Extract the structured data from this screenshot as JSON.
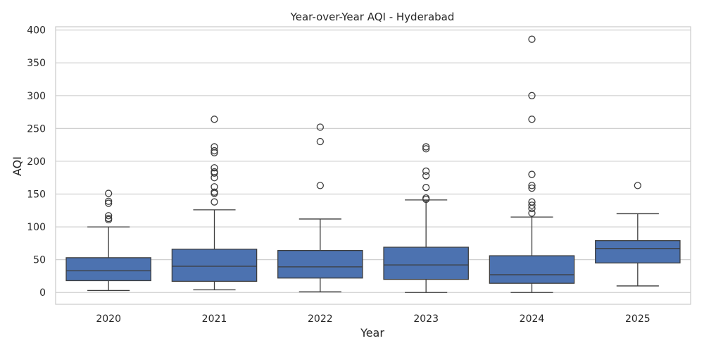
{
  "chart_data": {
    "type": "box",
    "title": "Year-over-Year AQI - Hyderabad",
    "xlabel": "Year",
    "ylabel": "AQI",
    "ylim": [
      -18,
      405
    ],
    "yticks": [
      0,
      50,
      100,
      150,
      200,
      250,
      300,
      350,
      400
    ],
    "categories": [
      "2020",
      "2021",
      "2022",
      "2023",
      "2024",
      "2025"
    ],
    "grid": true,
    "box_color": "#4c72b0",
    "line_color": "#3d3d3d",
    "grid_color": "#d0d0d0",
    "boxes": [
      {
        "category": "2020",
        "whisker_low": 3,
        "q1": 18,
        "median": 33,
        "q3": 53,
        "whisker_high": 100,
        "outliers": [
          111,
          113,
          117,
          136,
          139,
          151
        ]
      },
      {
        "category": "2021",
        "whisker_low": 4,
        "q1": 17,
        "median": 40,
        "q3": 66,
        "whisker_high": 126,
        "outliers": [
          138,
          151,
          153,
          161,
          175,
          182,
          184,
          190,
          213,
          216,
          222,
          264
        ]
      },
      {
        "category": "2022",
        "whisker_low": 1,
        "q1": 22,
        "median": 39,
        "q3": 64,
        "whisker_high": 112,
        "outliers": [
          163,
          230,
          252
        ]
      },
      {
        "category": "2023",
        "whisker_low": 0,
        "q1": 20,
        "median": 42,
        "q3": 69,
        "whisker_high": 141,
        "outliers": [
          142,
          144,
          160,
          178,
          185,
          219,
          222
        ]
      },
      {
        "category": "2024",
        "whisker_low": 0,
        "q1": 14,
        "median": 27,
        "q3": 56,
        "whisker_high": 115,
        "outliers": [
          121,
          128,
          133,
          138,
          159,
          163,
          180,
          264,
          300,
          386
        ]
      },
      {
        "category": "2025",
        "whisker_low": 10,
        "q1": 45,
        "median": 67,
        "q3": 79,
        "whisker_high": 120,
        "outliers": [
          163
        ]
      }
    ]
  }
}
